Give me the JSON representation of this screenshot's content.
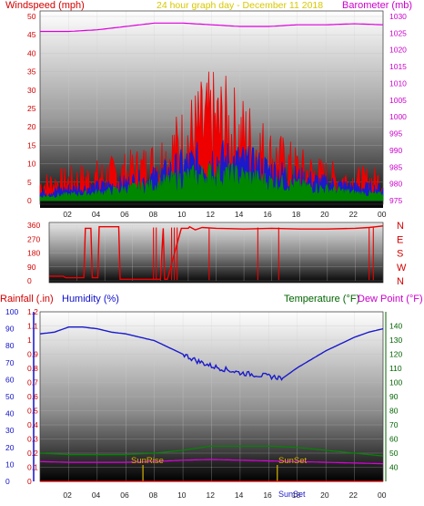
{
  "header": {
    "left_title": "Windspeed (mph)",
    "center_title": "24 hour graph day - December 11 2018",
    "right_title": "Barometer (mb)",
    "colors": {
      "left": "#d40000",
      "center": "#d8c800",
      "right": "#cc00cc"
    }
  },
  "lower_header": {
    "rain_label": "Rainfall (.in)",
    "humidity_label": "Humidity (%)",
    "temp_label": "Temperature (°F)",
    "dew_label": "Dew Point (°F)",
    "colors": {
      "rain": "#d40000",
      "humidity": "#1010cc",
      "temp": "#006400",
      "dew": "#cc00cc"
    }
  },
  "annotations": {
    "sunrise": "SunRise",
    "sunset": "SunSet",
    "sunset_bottom": "SunSet"
  },
  "chart_data": [
    {
      "type": "line",
      "name": "wind-barometer",
      "x_ticks": [
        "02",
        "04",
        "06",
        "08",
        "10",
        "12",
        "14",
        "16",
        "18",
        "20",
        "22",
        "00"
      ],
      "left_axis": {
        "ylim": [
          0,
          50
        ],
        "ticks": [
          0,
          5,
          10,
          15,
          20,
          25,
          30,
          35,
          40,
          45,
          50
        ]
      },
      "right_axis": {
        "ylim": [
          975,
          1030
        ],
        "ticks": [
          975,
          980,
          985,
          990,
          995,
          1000,
          1005,
          1010,
          1015,
          1020,
          1025,
          1030
        ]
      },
      "series": [
        {
          "axis": "right",
          "color": "#dd00dd",
          "x": [
            0,
            2,
            4,
            6,
            8,
            10,
            12,
            14,
            16,
            18,
            20,
            22,
            24
          ],
          "values": [
            1025.5,
            1025.5,
            1026,
            1027,
            1028,
            1028,
            1027.5,
            1027,
            1027,
            1027.5,
            1027.5,
            1027.8,
            1027.5
          ]
        },
        {
          "axis": "left",
          "color": "#ee0000",
          "x": [
            0,
            2,
            4,
            6,
            8,
            10,
            11,
            12,
            13,
            14,
            15,
            16,
            18,
            20,
            22,
            24
          ],
          "values": [
            4,
            5,
            6,
            7,
            9,
            14,
            17,
            19,
            18,
            16,
            14,
            11,
            8,
            6,
            5,
            5
          ]
        },
        {
          "axis": "left",
          "color": "#1a1acc",
          "x": [
            0,
            2,
            4,
            6,
            8,
            10,
            12,
            14,
            16,
            18,
            20,
            22,
            24
          ],
          "values": [
            2,
            3,
            3.5,
            4.5,
            6,
            9,
            11,
            10,
            8,
            6,
            4.5,
            3.5,
            3
          ]
        },
        {
          "axis": "left",
          "color": "#008800",
          "x": [
            0,
            2,
            4,
            6,
            8,
            10,
            12,
            14,
            16,
            18,
            20,
            22,
            24
          ],
          "values": [
            1,
            1.5,
            2,
            3,
            4,
            6,
            7,
            6.5,
            5,
            4,
            3,
            2,
            1.5
          ]
        }
      ]
    },
    {
      "type": "line",
      "name": "wind-direction",
      "x_ticks": [
        "02",
        "04",
        "06",
        "08",
        "10",
        "12",
        "14",
        "16",
        "18",
        "20",
        "22",
        "00"
      ],
      "y_ticks": [
        0,
        90,
        180,
        270,
        360
      ],
      "right_labels": [
        "N",
        "W",
        "S",
        "E",
        "N"
      ],
      "ylim": [
        0,
        360
      ],
      "series": [
        {
          "color": "#ee0000",
          "x": [
            0,
            1,
            1.2,
            2.5,
            2.6,
            3.0,
            3.1,
            3.5,
            3.6,
            5.0,
            5.1,
            6.5,
            6.6,
            8.0,
            8.2,
            8.3,
            8.5,
            9.5,
            10.0,
            10.1,
            10.5,
            11,
            12,
            14,
            16,
            18,
            20,
            22,
            23,
            23.5,
            24
          ],
          "values": [
            30,
            30,
            20,
            20,
            340,
            340,
            20,
            20,
            350,
            350,
            10,
            10,
            10,
            10,
            340,
            10,
            10,
            340,
            340,
            350,
            330,
            345,
            340,
            335,
            340,
            335,
            335,
            340,
            345,
            350,
            355
          ]
        }
      ]
    },
    {
      "type": "line",
      "name": "rain-humidity-temp",
      "x_ticks": [
        "02",
        "04",
        "06",
        "08",
        "10",
        "12",
        "14",
        "16",
        "18",
        "20",
        "22",
        "00"
      ],
      "left_axis": {
        "ylim": [
          0,
          1.2
        ],
        "ticks": [
          0,
          0.1,
          0.2,
          0.3,
          0.4,
          0.5,
          0.6,
          0.7,
          0.8,
          0.9,
          1,
          1.1,
          1.2
        ]
      },
      "humidity_axis": {
        "ylim": [
          0,
          100
        ],
        "ticks": [
          0,
          10,
          20,
          30,
          40,
          50,
          60,
          70,
          80,
          90,
          100
        ]
      },
      "right_axis": {
        "ylim": [
          30,
          150
        ],
        "ticks": [
          40,
          50,
          60,
          70,
          80,
          90,
          100,
          110,
          120,
          130,
          140
        ]
      },
      "series": [
        {
          "axis": "humidity",
          "color": "#1a1acc",
          "x": [
            0,
            1,
            2,
            3,
            4,
            5,
            6,
            7,
            8,
            9,
            10,
            11,
            12,
            13,
            14,
            15,
            16,
            17,
            18,
            19,
            20,
            21,
            22,
            23,
            24
          ],
          "values": [
            87,
            88,
            91,
            91,
            90,
            88,
            87,
            85,
            83,
            79,
            75,
            71,
            68,
            66,
            64,
            63,
            62,
            61,
            67,
            72,
            77,
            81,
            85,
            88,
            90
          ]
        },
        {
          "axis": "right",
          "color": "#008800",
          "x": [
            0,
            2,
            4,
            6,
            8,
            10,
            12,
            14,
            16,
            18,
            20,
            22,
            24
          ],
          "values": [
            50,
            49,
            49,
            49,
            50,
            52,
            55,
            55,
            55,
            54,
            52,
            50,
            48
          ]
        },
        {
          "axis": "right",
          "color": "#dd00dd",
          "x": [
            0,
            2,
            4,
            6,
            8,
            10,
            12,
            14,
            16,
            18,
            20,
            22,
            24
          ],
          "values": [
            44,
            43.5,
            43.5,
            43.5,
            44,
            45,
            45.5,
            45,
            44.5,
            44,
            43.5,
            43,
            42.5
          ]
        },
        {
          "axis": "left",
          "color": "#ee0000",
          "x": [
            0,
            24
          ],
          "values": [
            0,
            0
          ]
        }
      ]
    }
  ]
}
